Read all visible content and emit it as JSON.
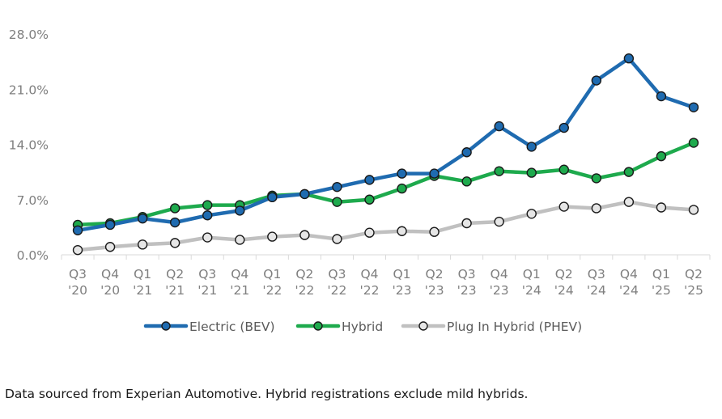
{
  "chart_data": {
    "type": "line",
    "categories": [
      [
        "Q3",
        "'20"
      ],
      [
        "Q4",
        "'20"
      ],
      [
        "Q1",
        "'21"
      ],
      [
        "Q2",
        "'21"
      ],
      [
        "Q3",
        "'21"
      ],
      [
        "Q4",
        "'21"
      ],
      [
        "Q1",
        "'22"
      ],
      [
        "Q2",
        "'22"
      ],
      [
        "Q3",
        "'22"
      ],
      [
        "Q4",
        "'22"
      ],
      [
        "Q1",
        "'23"
      ],
      [
        "Q2",
        "'23"
      ],
      [
        "Q3",
        "'23"
      ],
      [
        "Q4",
        "'23"
      ],
      [
        "Q1",
        "'24"
      ],
      [
        "Q2",
        "'24"
      ],
      [
        "Q3",
        "'24"
      ],
      [
        "Q4",
        "'24"
      ],
      [
        "Q1",
        "'25"
      ],
      [
        "Q2",
        "'25"
      ]
    ],
    "y_ticks": [
      "0.0%",
      "7.0%",
      "14.0%",
      "21.0%",
      "28.0%"
    ],
    "ylim": [
      0,
      28
    ],
    "ytick_values": [
      0,
      7,
      14,
      21,
      28
    ],
    "series": [
      {
        "name": "Electric (BEV)",
        "color": "#1f6bb0",
        "marker_fill": "#1f6bb0",
        "values": [
          3.1,
          3.8,
          4.6,
          4.1,
          5.0,
          5.6,
          7.3,
          7.7,
          8.6,
          9.5,
          10.3,
          10.3,
          13.0,
          16.3,
          13.7,
          16.1,
          22.1,
          24.9,
          20.1,
          18.7
        ]
      },
      {
        "name": "Hybrid",
        "color": "#1eaa4d",
        "marker_fill": "#1eaa4d",
        "values": [
          3.8,
          4.0,
          4.8,
          5.9,
          6.3,
          6.3,
          7.5,
          7.7,
          6.7,
          7.0,
          8.4,
          10.0,
          9.3,
          10.6,
          10.4,
          10.8,
          9.7,
          10.5,
          12.5,
          14.2
        ]
      },
      {
        "name": "Plug In Hybrid (PHEV)",
        "color": "#c0c0c0",
        "marker_fill": "#e6e6e6",
        "values": [
          0.6,
          1.0,
          1.3,
          1.5,
          2.2,
          1.9,
          2.3,
          2.5,
          2.0,
          2.8,
          3.0,
          2.9,
          4.0,
          4.2,
          5.2,
          6.1,
          5.9,
          6.7,
          6.0,
          5.7
        ]
      }
    ],
    "legend_position": "bottom",
    "grid": false
  },
  "footnote": "Data sourced from Experian Automotive. Hybrid registrations exclude mild hybrids."
}
